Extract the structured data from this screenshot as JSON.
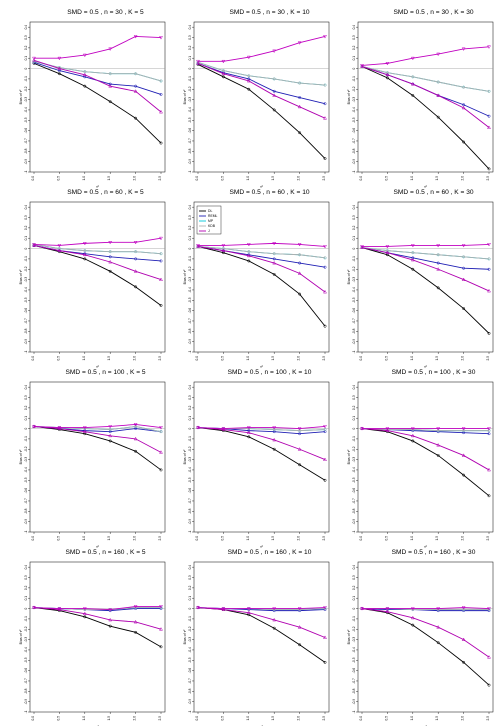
{
  "figure": {
    "ylabel": "Bias of τ²",
    "xlabel": "τ²",
    "x_ticks": [
      "0.0",
      "0.5",
      "1.0",
      "1.5",
      "2.0",
      "2.5"
    ],
    "y_ticks": [
      "0.4",
      "0.3",
      "0.2",
      "0.1",
      "0",
      "-0.1",
      "-0.2",
      "-0.3",
      "-0.4",
      "-0.5",
      "-0.6",
      "-0.7",
      "-0.8",
      "-0.9",
      "-1"
    ]
  },
  "legend": {
    "entries": [
      {
        "name": "DL",
        "color": "#000000",
        "marker": "circle"
      },
      {
        "name": "REML",
        "color": "#1f1fb4",
        "marker": "circle"
      },
      {
        "name": "MP",
        "color": "#00c8d8",
        "marker": "circle"
      },
      {
        "name": "KDB",
        "color": "#b0b0b0",
        "marker": "circle"
      },
      {
        "name": "J",
        "color": "#b000b0",
        "marker": "triangle"
      }
    ]
  },
  "chart_data": [
    {
      "type": "line",
      "title": "SMD = 0.5 , n = 30 , K = 5",
      "xlabel": "τ²",
      "ylabel": "Bias of τ²",
      "xlim": [
        0,
        2.5
      ],
      "ylim": [
        -1,
        0.45
      ],
      "x": [
        0,
        0.5,
        1.0,
        1.5,
        2.0,
        2.5
      ],
      "series": [
        {
          "name": "DL",
          "values": [
            0.05,
            -0.05,
            -0.17,
            -0.32,
            -0.48,
            -0.72
          ]
        },
        {
          "name": "REML",
          "values": [
            0.06,
            -0.02,
            -0.08,
            -0.15,
            -0.17,
            -0.25
          ]
        },
        {
          "name": "MP",
          "values": [
            0.07,
            0.01,
            -0.03,
            -0.05,
            -0.05,
            -0.12
          ]
        },
        {
          "name": "KDB",
          "values": [
            0.07,
            0.01,
            -0.03,
            -0.05,
            -0.05,
            -0.12
          ]
        },
        {
          "name": "J",
          "values": [
            0.08,
            0.0,
            -0.06,
            -0.17,
            -0.22,
            -0.42
          ]
        },
        {
          "name": "J-upper",
          "values": [
            0.1,
            0.1,
            0.13,
            0.19,
            0.31,
            0.3
          ]
        }
      ]
    },
    {
      "type": "line",
      "title": "SMD = 0.5 , n = 30 , K = 10",
      "xlabel": "τ²",
      "ylabel": "Bias of τ²",
      "xlim": [
        0,
        2.5
      ],
      "ylim": [
        -1,
        0.45
      ],
      "x": [
        0,
        0.5,
        1.0,
        1.5,
        2.0,
        2.5
      ],
      "series": [
        {
          "name": "DL",
          "values": [
            0.04,
            -0.08,
            -0.2,
            -0.4,
            -0.62,
            -0.87
          ]
        },
        {
          "name": "REML",
          "values": [
            0.05,
            -0.04,
            -0.1,
            -0.22,
            -0.28,
            -0.34
          ]
        },
        {
          "name": "MP",
          "values": [
            0.06,
            -0.02,
            -0.07,
            -0.1,
            -0.14,
            -0.16
          ]
        },
        {
          "name": "KDB",
          "values": [
            0.06,
            -0.02,
            -0.07,
            -0.1,
            -0.14,
            -0.16
          ]
        },
        {
          "name": "J",
          "values": [
            0.05,
            -0.05,
            -0.12,
            -0.26,
            -0.37,
            -0.48
          ]
        },
        {
          "name": "J-upper",
          "values": [
            0.07,
            0.07,
            0.11,
            0.17,
            0.25,
            0.31
          ]
        }
      ]
    },
    {
      "type": "line",
      "title": "SMD = 0.5 , n = 30 , K = 30",
      "xlabel": "τ²",
      "ylabel": "Bias of τ²",
      "xlim": [
        0,
        2.5
      ],
      "ylim": [
        -1,
        0.45
      ],
      "x": [
        0,
        0.5,
        1.0,
        1.5,
        2.0,
        2.5
      ],
      "series": [
        {
          "name": "DL",
          "values": [
            0.02,
            -0.09,
            -0.26,
            -0.47,
            -0.71,
            -0.97
          ]
        },
        {
          "name": "REML",
          "values": [
            0.02,
            -0.06,
            -0.15,
            -0.26,
            -0.35,
            -0.46
          ]
        },
        {
          "name": "MP",
          "values": [
            0.02,
            -0.04,
            -0.08,
            -0.13,
            -0.18,
            -0.22
          ]
        },
        {
          "name": "KDB",
          "values": [
            0.02,
            -0.04,
            -0.08,
            -0.13,
            -0.18,
            -0.22
          ]
        },
        {
          "name": "J",
          "values": [
            0.02,
            -0.06,
            -0.15,
            -0.26,
            -0.38,
            -0.57
          ]
        },
        {
          "name": "J-upper",
          "values": [
            0.03,
            0.05,
            0.1,
            0.14,
            0.19,
            0.21
          ]
        }
      ]
    },
    {
      "type": "line",
      "title": "SMD = 0.5 , n = 60 , K = 5",
      "xlabel": "τ²",
      "ylabel": "Bias of τ²",
      "xlim": [
        0,
        2.5
      ],
      "ylim": [
        -1,
        0.45
      ],
      "x": [
        0,
        0.5,
        1.0,
        1.5,
        2.0,
        2.5
      ],
      "series": [
        {
          "name": "DL",
          "values": [
            0.03,
            -0.03,
            -0.1,
            -0.22,
            -0.37,
            -0.55
          ]
        },
        {
          "name": "REML",
          "values": [
            0.03,
            -0.02,
            -0.05,
            -0.08,
            -0.1,
            -0.12
          ]
        },
        {
          "name": "MP",
          "values": [
            0.04,
            0.0,
            -0.02,
            -0.03,
            -0.03,
            -0.05
          ]
        },
        {
          "name": "KDB",
          "values": [
            0.04,
            0.0,
            -0.02,
            -0.03,
            -0.03,
            -0.05
          ]
        },
        {
          "name": "J",
          "values": [
            0.03,
            -0.02,
            -0.06,
            -0.13,
            -0.22,
            -0.3
          ]
        },
        {
          "name": "J-upper",
          "values": [
            0.04,
            0.03,
            0.05,
            0.06,
            0.06,
            0.1
          ]
        }
      ]
    },
    {
      "type": "line",
      "title": "SMD = 0.5 , n = 60 , K = 10",
      "xlabel": "τ²",
      "ylabel": "Bias of τ²",
      "xlim": [
        0,
        2.5
      ],
      "ylim": [
        -1,
        0.45
      ],
      "x": [
        0,
        0.5,
        1.0,
        1.5,
        2.0,
        2.5
      ],
      "series": [
        {
          "name": "DL",
          "values": [
            0.02,
            -0.04,
            -0.12,
            -0.25,
            -0.44,
            -0.75
          ]
        },
        {
          "name": "REML",
          "values": [
            0.02,
            -0.02,
            -0.06,
            -0.1,
            -0.14,
            -0.18
          ]
        },
        {
          "name": "MP",
          "values": [
            0.02,
            0.0,
            -0.03,
            -0.05,
            -0.06,
            -0.09
          ]
        },
        {
          "name": "KDB",
          "values": [
            0.02,
            0.0,
            -0.03,
            -0.05,
            -0.06,
            -0.09
          ]
        },
        {
          "name": "J",
          "values": [
            0.02,
            -0.02,
            -0.07,
            -0.14,
            -0.24,
            -0.42
          ]
        },
        {
          "name": "J-upper",
          "values": [
            0.03,
            0.03,
            0.04,
            0.05,
            0.04,
            0.02
          ]
        }
      ]
    },
    {
      "type": "line",
      "title": "SMD = 0.5 , n = 60 , K = 30",
      "xlabel": "τ²",
      "ylabel": "Bias of τ²",
      "xlim": [
        0,
        2.5
      ],
      "ylim": [
        -1,
        0.45
      ],
      "x": [
        0,
        0.5,
        1.0,
        1.5,
        2.0,
        2.5
      ],
      "series": [
        {
          "name": "DL",
          "values": [
            0.01,
            -0.06,
            -0.2,
            -0.38,
            -0.58,
            -0.82
          ]
        },
        {
          "name": "REML",
          "values": [
            0.01,
            -0.04,
            -0.09,
            -0.14,
            -0.19,
            -0.2
          ]
        },
        {
          "name": "MP",
          "values": [
            0.01,
            -0.02,
            -0.04,
            -0.06,
            -0.08,
            -0.1
          ]
        },
        {
          "name": "KDB",
          "values": [
            0.01,
            -0.02,
            -0.04,
            -0.06,
            -0.08,
            -0.1
          ]
        },
        {
          "name": "J",
          "values": [
            0.01,
            -0.04,
            -0.11,
            -0.2,
            -0.3,
            -0.41
          ]
        },
        {
          "name": "J-upper",
          "values": [
            0.02,
            0.02,
            0.03,
            0.03,
            0.03,
            0.04
          ]
        }
      ]
    },
    {
      "type": "line",
      "title": "SMD = 0.5 , n = 100 , K = 5",
      "xlabel": "τ²",
      "ylabel": "Bias of τ²",
      "xlim": [
        0,
        2.5
      ],
      "ylim": [
        -1,
        0.45
      ],
      "x": [
        0,
        0.5,
        1.0,
        1.5,
        2.0,
        2.5
      ],
      "series": [
        {
          "name": "DL",
          "values": [
            0.02,
            -0.01,
            -0.05,
            -0.12,
            -0.22,
            -0.4
          ]
        },
        {
          "name": "REML",
          "values": [
            0.02,
            0.0,
            -0.02,
            -0.03,
            0.0,
            -0.03
          ]
        },
        {
          "name": "MP",
          "values": [
            0.02,
            0.01,
            0.0,
            -0.01,
            0.02,
            -0.03
          ]
        },
        {
          "name": "KDB",
          "values": [
            0.02,
            0.01,
            0.0,
            -0.01,
            0.02,
            -0.03
          ]
        },
        {
          "name": "J",
          "values": [
            0.02,
            0.0,
            -0.03,
            -0.07,
            -0.1,
            -0.23
          ]
        },
        {
          "name": "J-upper",
          "values": [
            0.02,
            0.01,
            0.01,
            0.02,
            0.04,
            0.01
          ]
        }
      ]
    },
    {
      "type": "line",
      "title": "SMD = 0.5 , n = 100 , K = 10",
      "xlabel": "τ²",
      "ylabel": "Bias of τ²",
      "xlim": [
        0,
        2.5
      ],
      "ylim": [
        -1,
        0.45
      ],
      "x": [
        0,
        0.5,
        1.0,
        1.5,
        2.0,
        2.5
      ],
      "series": [
        {
          "name": "DL",
          "values": [
            0.01,
            -0.02,
            -0.08,
            -0.2,
            -0.35,
            -0.5
          ]
        },
        {
          "name": "REML",
          "values": [
            0.01,
            0.0,
            -0.02,
            -0.03,
            -0.05,
            -0.03
          ]
        },
        {
          "name": "MP",
          "values": [
            0.01,
            0.0,
            0.0,
            -0.01,
            -0.02,
            -0.01
          ]
        },
        {
          "name": "KDB",
          "values": [
            0.01,
            0.0,
            0.0,
            -0.01,
            -0.02,
            -0.01
          ]
        },
        {
          "name": "J",
          "values": [
            0.01,
            -0.01,
            -0.04,
            -0.11,
            -0.2,
            -0.3
          ]
        },
        {
          "name": "J-upper",
          "values": [
            0.01,
            0.0,
            0.01,
            0.01,
            0.0,
            0.02
          ]
        }
      ]
    },
    {
      "type": "line",
      "title": "SMD = 0.5 , n = 100 , K = 30",
      "xlabel": "τ²",
      "ylabel": "Bias of τ²",
      "xlim": [
        0,
        2.5
      ],
      "ylim": [
        -1,
        0.45
      ],
      "x": [
        0,
        0.5,
        1.0,
        1.5,
        2.0,
        2.5
      ],
      "series": [
        {
          "name": "DL",
          "values": [
            0.0,
            -0.03,
            -0.12,
            -0.26,
            -0.45,
            -0.65
          ]
        },
        {
          "name": "REML",
          "values": [
            0.0,
            -0.01,
            -0.02,
            -0.03,
            -0.04,
            -0.05
          ]
        },
        {
          "name": "MP",
          "values": [
            0.0,
            -0.01,
            -0.01,
            -0.02,
            -0.02,
            -0.02
          ]
        },
        {
          "name": "KDB",
          "values": [
            0.0,
            -0.01,
            -0.01,
            -0.02,
            -0.02,
            -0.02
          ]
        },
        {
          "name": "J",
          "values": [
            0.0,
            -0.02,
            -0.07,
            -0.16,
            -0.26,
            -0.4
          ]
        },
        {
          "name": "J-upper",
          "values": [
            0.0,
            0.0,
            0.0,
            0.0,
            0.0,
            0.0
          ]
        }
      ]
    },
    {
      "type": "line",
      "title": "SMD = 0.5 , n = 160 , K = 5",
      "xlabel": "τ²",
      "ylabel": "Bias of τ²",
      "xlim": [
        0,
        2.5
      ],
      "ylim": [
        -1,
        0.45
      ],
      "x": [
        0,
        0.5,
        1.0,
        1.5,
        2.0,
        2.5
      ],
      "series": [
        {
          "name": "DL",
          "values": [
            0.01,
            -0.02,
            -0.08,
            -0.17,
            -0.23,
            -0.37
          ]
        },
        {
          "name": "REML",
          "values": [
            0.01,
            0.0,
            -0.01,
            -0.02,
            0.0,
            0.0
          ]
        },
        {
          "name": "MP",
          "values": [
            0.01,
            0.0,
            -0.01,
            -0.01,
            0.01,
            0.01
          ]
        },
        {
          "name": "KDB",
          "values": [
            0.01,
            0.0,
            -0.01,
            -0.01,
            0.01,
            0.01
          ]
        },
        {
          "name": "J",
          "values": [
            0.01,
            -0.01,
            -0.05,
            -0.11,
            -0.13,
            -0.2
          ]
        },
        {
          "name": "J-upper",
          "values": [
            0.01,
            0.0,
            0.0,
            -0.01,
            0.02,
            0.02
          ]
        }
      ]
    },
    {
      "type": "line",
      "title": "SMD = 0.5 , n = 160 , K = 10",
      "xlabel": "τ²",
      "ylabel": "Bias of τ²",
      "xlim": [
        0,
        2.5
      ],
      "ylim": [
        -1,
        0.45
      ],
      "x": [
        0,
        0.5,
        1.0,
        1.5,
        2.0,
        2.5
      ],
      "series": [
        {
          "name": "DL",
          "values": [
            0.01,
            -0.01,
            -0.06,
            -0.19,
            -0.35,
            -0.52
          ]
        },
        {
          "name": "REML",
          "values": [
            0.01,
            0.0,
            -0.01,
            -0.02,
            -0.02,
            -0.01
          ]
        },
        {
          "name": "MP",
          "values": [
            0.01,
            0.0,
            0.0,
            -0.01,
            -0.01,
            0.0
          ]
        },
        {
          "name": "KDB",
          "values": [
            0.01,
            0.0,
            0.0,
            -0.01,
            -0.01,
            0.0
          ]
        },
        {
          "name": "J",
          "values": [
            0.01,
            -0.01,
            -0.04,
            -0.11,
            -0.18,
            -0.28
          ]
        },
        {
          "name": "J-upper",
          "values": [
            0.01,
            0.0,
            0.0,
            0.0,
            0.0,
            0.01
          ]
        }
      ]
    },
    {
      "type": "line",
      "title": "SMD = 0.5 , n = 160 , K = 30",
      "xlabel": "τ²",
      "ylabel": "Bias of τ²",
      "xlim": [
        0,
        2.5
      ],
      "ylim": [
        -1,
        0.45
      ],
      "x": [
        0,
        0.5,
        1.0,
        1.5,
        2.0,
        2.5
      ],
      "series": [
        {
          "name": "DL",
          "values": [
            0.0,
            -0.04,
            -0.16,
            -0.33,
            -0.52,
            -0.74
          ]
        },
        {
          "name": "REML",
          "values": [
            0.0,
            -0.01,
            -0.01,
            -0.02,
            -0.02,
            -0.02
          ]
        },
        {
          "name": "MP",
          "values": [
            0.0,
            0.0,
            -0.01,
            -0.01,
            -0.01,
            -0.01
          ]
        },
        {
          "name": "KDB",
          "values": [
            0.0,
            0.0,
            -0.01,
            -0.01,
            -0.01,
            -0.01
          ]
        },
        {
          "name": "J",
          "values": [
            0.0,
            -0.03,
            -0.09,
            -0.18,
            -0.3,
            -0.47
          ]
        },
        {
          "name": "J-upper",
          "values": [
            0.0,
            0.0,
            0.0,
            0.0,
            0.01,
            0.0
          ]
        }
      ]
    }
  ]
}
